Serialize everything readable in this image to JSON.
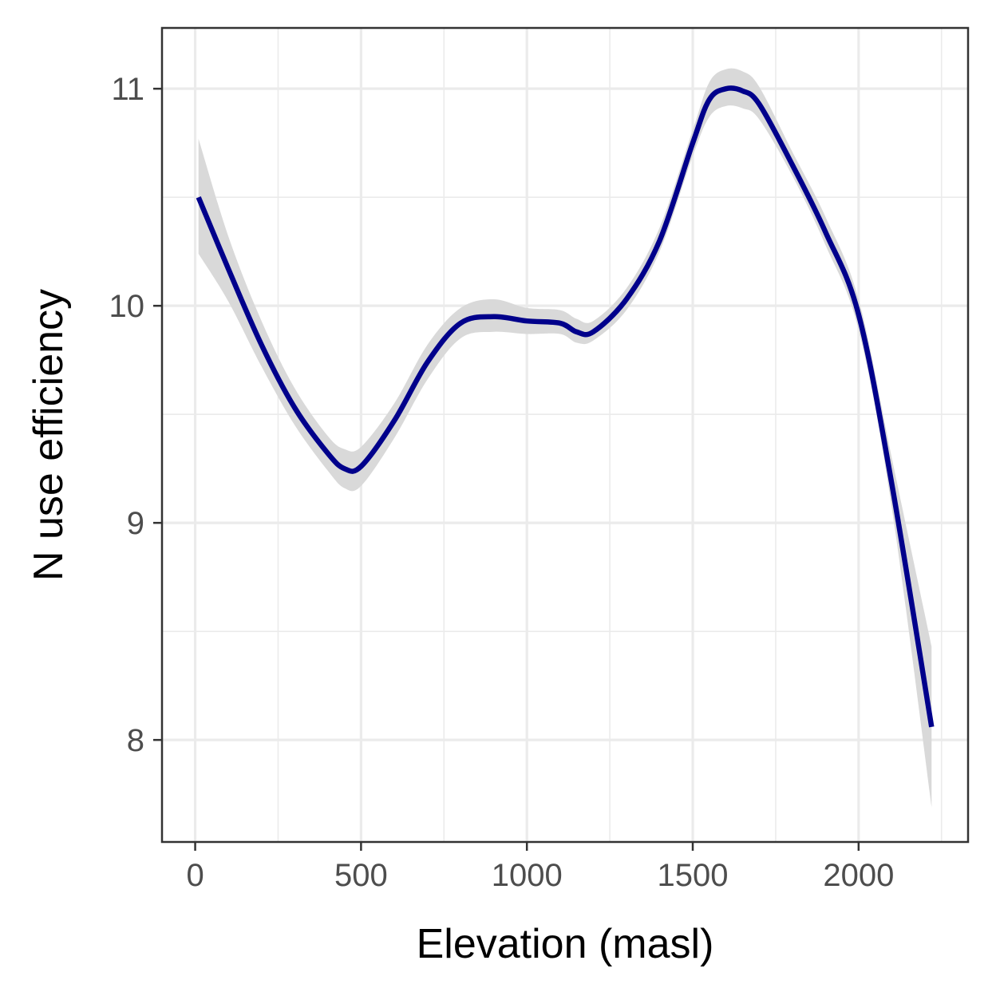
{
  "chart_data": {
    "type": "line",
    "title": "",
    "xlabel": "Elevation (masl)",
    "ylabel": "N use efficiency",
    "xlim": [
      -100,
      2330
    ],
    "ylim": [
      7.53,
      11.28
    ],
    "xticks": [
      0,
      500,
      1000,
      1500,
      2000
    ],
    "yticks": [
      8,
      9,
      10,
      11
    ],
    "xtick_labels": [
      "0",
      "500",
      "1000",
      "1500",
      "2000"
    ],
    "ytick_labels": [
      "8",
      "9",
      "10",
      "11"
    ],
    "x_minor_ticks": [
      250,
      750,
      1250,
      1750,
      2250
    ],
    "y_minor_ticks": [
      8.5,
      9.5,
      10.5
    ],
    "grid": true,
    "legend": "none",
    "colors": {
      "line": "#00008b",
      "ribbon": "#d9d9d9",
      "grid": "#ebebeb",
      "panel_border": "#333333",
      "background": "#ffffff"
    },
    "series": [
      {
        "x": [
          10,
          100,
          200,
          300,
          400,
          450,
          500,
          600,
          700,
          800,
          900,
          1000,
          1100,
          1150,
          1200,
          1300,
          1400,
          1500,
          1550,
          1600,
          1650,
          1700,
          1800,
          1900,
          2000,
          2100,
          2220
        ],
        "y": [
          10.5,
          10.17,
          9.82,
          9.53,
          9.32,
          9.25,
          9.26,
          9.47,
          9.74,
          9.92,
          9.95,
          9.93,
          9.92,
          9.88,
          9.88,
          10.03,
          10.3,
          10.75,
          10.95,
          11.0,
          10.99,
          10.93,
          10.65,
          10.34,
          9.96,
          9.18,
          8.06
        ],
        "lower": [
          10.24,
          10.02,
          9.72,
          9.45,
          9.24,
          9.16,
          9.17,
          9.39,
          9.66,
          9.85,
          9.88,
          9.87,
          9.87,
          9.83,
          9.84,
          9.98,
          10.25,
          10.69,
          10.87,
          10.92,
          10.91,
          10.86,
          10.6,
          10.28,
          9.89,
          9.07,
          7.69
        ],
        "upper": [
          10.77,
          10.32,
          9.93,
          9.62,
          9.4,
          9.34,
          9.35,
          9.55,
          9.82,
          9.99,
          10.03,
          9.99,
          9.98,
          9.94,
          9.93,
          10.08,
          10.36,
          10.81,
          11.03,
          11.09,
          11.08,
          11.01,
          10.71,
          10.41,
          10.03,
          9.3,
          8.43
        ]
      }
    ]
  }
}
